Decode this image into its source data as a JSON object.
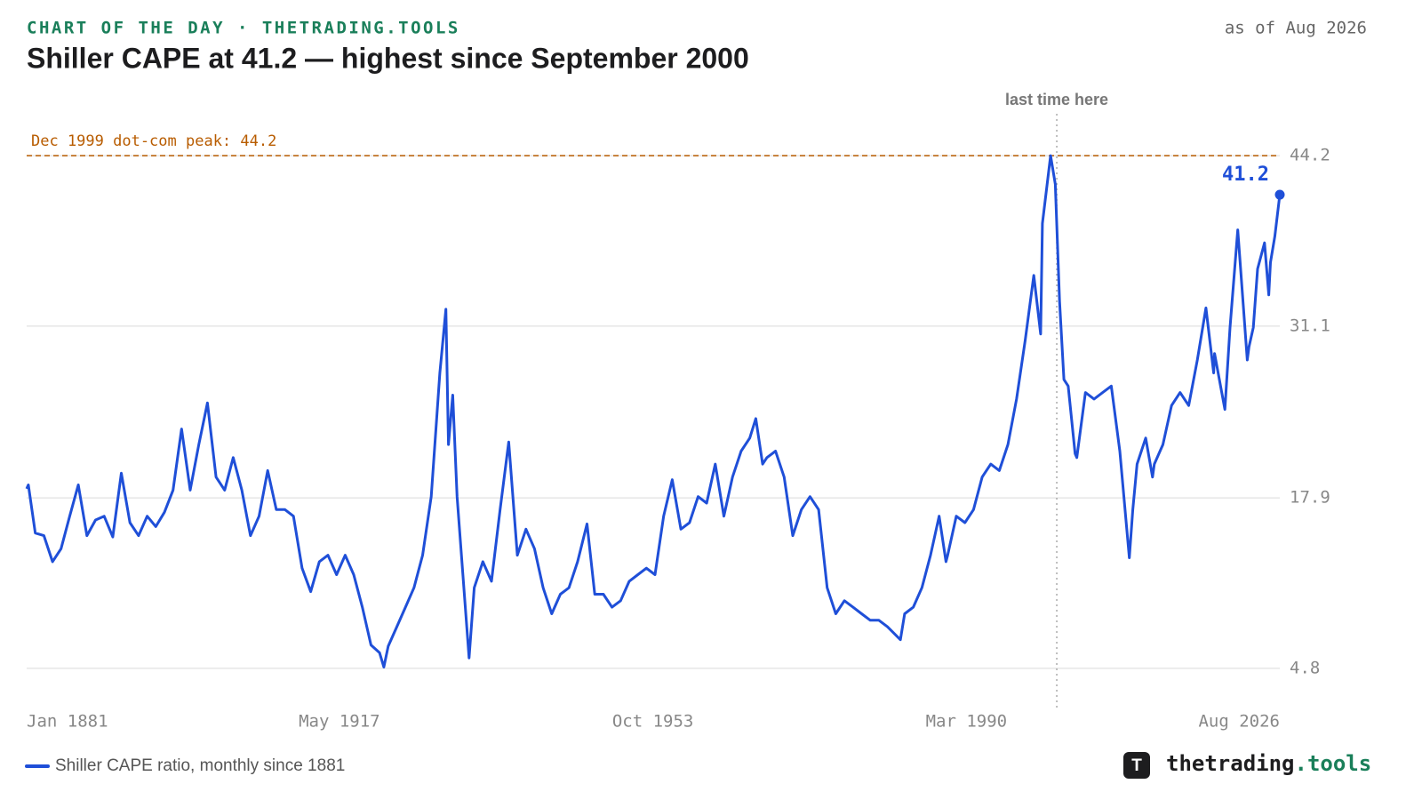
{
  "chart_data": {
    "type": "line",
    "kicker": "CHART OF THE DAY · THETRADING.TOOLS",
    "title": "Shiller CAPE at 41.2 — highest since September 2000",
    "as_of": "as of Aug 2026",
    "brand": {
      "icon": "T",
      "name": "thetrading",
      "tld": ".tools"
    },
    "x": [
      1881.0,
      1881.2,
      1882,
      1883,
      1884,
      1885,
      1886,
      1887,
      1888,
      1889,
      1890,
      1891,
      1892,
      1893,
      1894,
      1895,
      1896,
      1897,
      1898,
      1899,
      1900,
      1901,
      1902,
      1903,
      1904,
      1905,
      1906,
      1907,
      1908,
      1909,
      1910,
      1911,
      1912,
      1913,
      1914,
      1915,
      1916,
      1917,
      1918,
      1919,
      1920,
      1921,
      1922,
      1922.5,
      1923,
      1924,
      1925,
      1926,
      1927,
      1928,
      1929,
      1929.7,
      1930,
      1930.5,
      1931,
      1932.4,
      1933,
      1934,
      1935,
      1936,
      1937,
      1938,
      1939,
      1940,
      1941,
      1942,
      1943,
      1944,
      1945,
      1946.1,
      1947,
      1948,
      1949,
      1950,
      1951,
      1952,
      1953,
      1954,
      1955,
      1956,
      1957,
      1958,
      1959,
      1960,
      1961,
      1962,
      1963,
      1964,
      1965,
      1965.7,
      1966.5,
      1967,
      1968,
      1969,
      1970,
      1971,
      1972,
      1973,
      1974,
      1975,
      1976,
      1977,
      1978,
      1979,
      1980,
      1981,
      1982.5,
      1983,
      1984,
      1985,
      1986,
      1987,
      1987.8,
      1988,
      1989,
      1990,
      1991,
      1992,
      1993,
      1994,
      1995,
      1996,
      1997,
      1998,
      1998.8,
      1999,
      1999.95,
      2000.5,
      2001,
      2001.5,
      2002,
      2002.8,
      2003,
      2004,
      2005,
      2006,
      2007,
      2008,
      2009.1,
      2009.5,
      2010,
      2011,
      2011.8,
      2012,
      2013,
      2014,
      2015,
      2016,
      2017,
      2018,
      2018.9,
      2019,
      2020.2,
      2020.8,
      2021.7,
      2022.8,
      2023,
      2023.5,
      2024,
      2024.8,
      2025.3,
      2025.5,
      2026.0,
      2026.58
    ],
    "series": [
      {
        "name": "Shiller CAPE ratio, monthly since 1881",
        "color": "#1f4fd8",
        "values": [
          18.6,
          18.9,
          15.2,
          15.0,
          13.0,
          14.0,
          16.5,
          18.9,
          15.0,
          16.2,
          16.5,
          14.9,
          19.8,
          16.0,
          15.0,
          16.5,
          15.7,
          16.8,
          18.5,
          23.2,
          18.5,
          22.0,
          25.2,
          19.5,
          18.5,
          21.0,
          18.5,
          15.0,
          16.5,
          20.0,
          17.0,
          17.0,
          16.5,
          12.5,
          10.7,
          13.0,
          13.5,
          12.0,
          13.5,
          12.0,
          9.5,
          6.6,
          6.0,
          4.9,
          6.5,
          8.0,
          9.5,
          11.0,
          13.5,
          18.0,
          27.5,
          32.4,
          22.0,
          25.8,
          18.0,
          5.6,
          11.0,
          13.0,
          11.5,
          17.0,
          22.2,
          13.5,
          15.5,
          14.0,
          11.0,
          9.0,
          10.5,
          11.0,
          13.0,
          15.9,
          10.5,
          10.5,
          9.5,
          10.0,
          11.5,
          12.0,
          12.5,
          12.0,
          16.5,
          19.3,
          15.5,
          16.0,
          18.0,
          17.5,
          20.5,
          16.5,
          19.5,
          21.5,
          22.5,
          24.0,
          20.5,
          21.0,
          21.5,
          19.5,
          15.0,
          17.0,
          18.0,
          17.0,
          11.0,
          9.0,
          10.0,
          9.5,
          9.0,
          8.5,
          8.5,
          8.0,
          7.0,
          9.0,
          9.5,
          11.0,
          13.5,
          16.5,
          13.0,
          13.5,
          16.5,
          16.0,
          17.0,
          19.5,
          20.5,
          20.0,
          22.0,
          25.5,
          30.0,
          35.0,
          30.5,
          39.0,
          44.2,
          42.0,
          33.0,
          27.0,
          26.5,
          21.3,
          21.0,
          26.0,
          25.5,
          26.0,
          26.5,
          21.5,
          13.3,
          17.0,
          20.5,
          22.5,
          19.5,
          20.5,
          22.0,
          25.0,
          26.0,
          25.0,
          28.5,
          32.5,
          27.5,
          29.0,
          24.7,
          31.0,
          38.5,
          28.5,
          29.5,
          31.0,
          35.5,
          37.5,
          33.5,
          36.0,
          38.0,
          41.2
        ]
      }
    ],
    "xlim": [
      1881.0,
      2026.58
    ],
    "xticks": [
      {
        "value": 1881.0,
        "label": "Jan 1881"
      },
      {
        "value": 1917.33,
        "label": "May 1917"
      },
      {
        "value": 1953.75,
        "label": "Oct 1953"
      },
      {
        "value": 1990.17,
        "label": "Mar 1990"
      },
      {
        "value": 2026.58,
        "label": "Aug 2026"
      }
    ],
    "ylim": [
      2.2,
      46.6
    ],
    "yticks": [
      4.8,
      17.9,
      31.1,
      44.2
    ],
    "grid": true,
    "reference_line": {
      "value": 44.2,
      "label": "Dec 1999 dot-com peak: 44.2",
      "color": "#b85c00"
    },
    "marker_line": {
      "x": 2000.67,
      "label": "last time here"
    },
    "legend": "bottom-left"
  }
}
